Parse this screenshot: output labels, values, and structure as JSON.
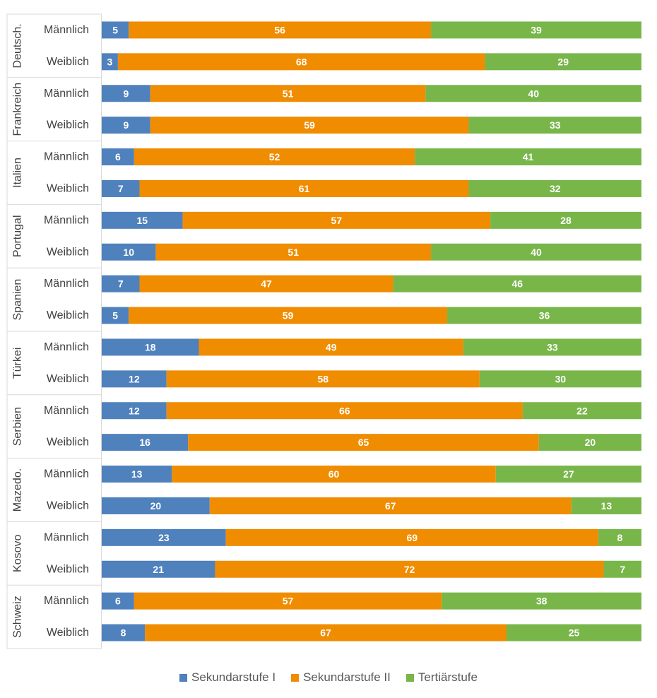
{
  "chart_data": {
    "type": "bar",
    "orientation": "horizontal",
    "stacked": true,
    "normalized_percent": true,
    "xlim": [
      0,
      100
    ],
    "grid": false,
    "legend_position": "bottom",
    "groups": [
      {
        "name": "Deutsch.",
        "rows": [
          {
            "label": "Männlich",
            "values": [
              5,
              56,
              39
            ]
          },
          {
            "label": "Weiblich",
            "values": [
              3,
              68,
              29
            ]
          }
        ]
      },
      {
        "name": "Frankreich",
        "rows": [
          {
            "label": "Männlich",
            "values": [
              9,
              51,
              40
            ]
          },
          {
            "label": "Weiblich",
            "values": [
              9,
              59,
              33
            ]
          }
        ]
      },
      {
        "name": "Italien",
        "rows": [
          {
            "label": "Männlich",
            "values": [
              6,
              52,
              41
            ]
          },
          {
            "label": "Weiblich",
            "values": [
              7,
              61,
              32
            ]
          }
        ]
      },
      {
        "name": "Portugal",
        "rows": [
          {
            "label": "Männlich",
            "values": [
              15,
              57,
              28
            ]
          },
          {
            "label": "Weiblich",
            "values": [
              10,
              51,
              40
            ]
          }
        ]
      },
      {
        "name": "Spanien",
        "rows": [
          {
            "label": "Männlich",
            "values": [
              7,
              47,
              46
            ]
          },
          {
            "label": "Weiblich",
            "values": [
              5,
              59,
              36
            ]
          }
        ]
      },
      {
        "name": "Türkei",
        "rows": [
          {
            "label": "Männlich",
            "values": [
              18,
              49,
              33
            ]
          },
          {
            "label": "Weiblich",
            "values": [
              12,
              58,
              30
            ]
          }
        ]
      },
      {
        "name": "Serbien",
        "rows": [
          {
            "label": "Männlich",
            "values": [
              12,
              66,
              22
            ]
          },
          {
            "label": "Weiblich",
            "values": [
              16,
              65,
              20
            ]
          }
        ]
      },
      {
        "name": "Mazedo.",
        "rows": [
          {
            "label": "Männlich",
            "values": [
              13,
              60,
              27
            ]
          },
          {
            "label": "Weiblich",
            "values": [
              20,
              67,
              13
            ]
          }
        ]
      },
      {
        "name": "Kosovo",
        "rows": [
          {
            "label": "Männlich",
            "values": [
              23,
              69,
              8
            ]
          },
          {
            "label": "Weiblich",
            "values": [
              21,
              72,
              7
            ]
          }
        ]
      },
      {
        "name": "Schweiz",
        "rows": [
          {
            "label": "Männlich",
            "values": [
              6,
              57,
              38
            ]
          },
          {
            "label": "Weiblich",
            "values": [
              8,
              67,
              25
            ]
          }
        ]
      }
    ],
    "series": [
      {
        "name": "Sekundarstufe I",
        "color": "#4f81bd"
      },
      {
        "name": "Sekundarstufe II",
        "color": "#f08c00"
      },
      {
        "name": "Tertiärstufe",
        "color": "#78b64a"
      }
    ]
  }
}
